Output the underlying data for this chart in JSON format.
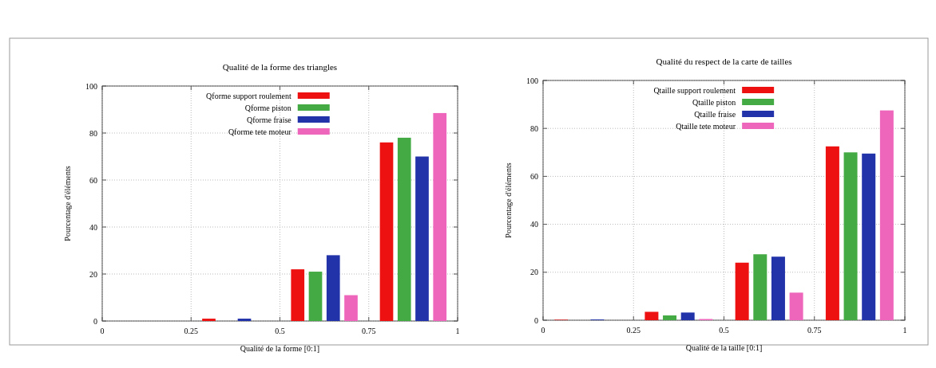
{
  "chart_data": [
    {
      "type": "bar",
      "title": "Qualité de la forme des triangles",
      "xlabel": "Qualité de la forme [0:1]",
      "ylabel": "Pourcentage d'éléments",
      "xlim": [
        0,
        1
      ],
      "xticks": [
        0,
        0.25,
        0.5,
        0.75,
        1
      ],
      "ylim": [
        0,
        100
      ],
      "yticks": [
        0,
        20,
        40,
        60,
        80,
        100
      ],
      "grid": true,
      "legend": "top",
      "series": [
        {
          "name": "Qforme support roulement",
          "color": "#ee1111",
          "x": [
            0.05,
            0.3,
            0.55,
            0.8
          ],
          "values": [
            0,
            1,
            22,
            76
          ]
        },
        {
          "name": "Qforme piston",
          "color": "#44aa44",
          "x": [
            0.1,
            0.35,
            0.6,
            0.85
          ],
          "values": [
            0,
            0,
            21,
            78
          ]
        },
        {
          "name": "Qforme fraise",
          "color": "#2233aa",
          "x": [
            0.15,
            0.4,
            0.65,
            0.9
          ],
          "values": [
            0,
            1,
            28,
            70
          ]
        },
        {
          "name": "Qforme tete moteur",
          "color": "#ee66bb",
          "x": [
            0.2,
            0.45,
            0.7,
            0.95
          ],
          "values": [
            0,
            0,
            11,
            88.5
          ]
        }
      ]
    },
    {
      "type": "bar",
      "title": "Qualité du respect de la carte de tailles",
      "xlabel": "Qualité de la taille [0:1]",
      "ylabel": "Pourcentage d'éléments",
      "xlim": [
        0,
        1
      ],
      "xticks": [
        0,
        0.25,
        0.5,
        0.75,
        1
      ],
      "ylim": [
        0,
        100
      ],
      "yticks": [
        0,
        20,
        40,
        60,
        80,
        100
      ],
      "grid": true,
      "legend": "top",
      "series": [
        {
          "name": "Qtaille support roulement",
          "color": "#ee1111",
          "x": [
            0.05,
            0.3,
            0.55,
            0.8
          ],
          "values": [
            0.2,
            3.5,
            24,
            72.5
          ]
        },
        {
          "name": "Qtaille piston",
          "color": "#44aa44",
          "x": [
            0.1,
            0.35,
            0.6,
            0.85
          ],
          "values": [
            0,
            2,
            27.5,
            70
          ]
        },
        {
          "name": "Qtaille fraise",
          "color": "#2233aa",
          "x": [
            0.15,
            0.4,
            0.65,
            0.9
          ],
          "values": [
            0.3,
            3.2,
            26.5,
            69.5
          ]
        },
        {
          "name": "Qtaille tete moteur",
          "color": "#ee66bb",
          "x": [
            0.2,
            0.45,
            0.7,
            0.95
          ],
          "values": [
            0,
            0.5,
            11.5,
            87.5
          ]
        }
      ]
    }
  ]
}
